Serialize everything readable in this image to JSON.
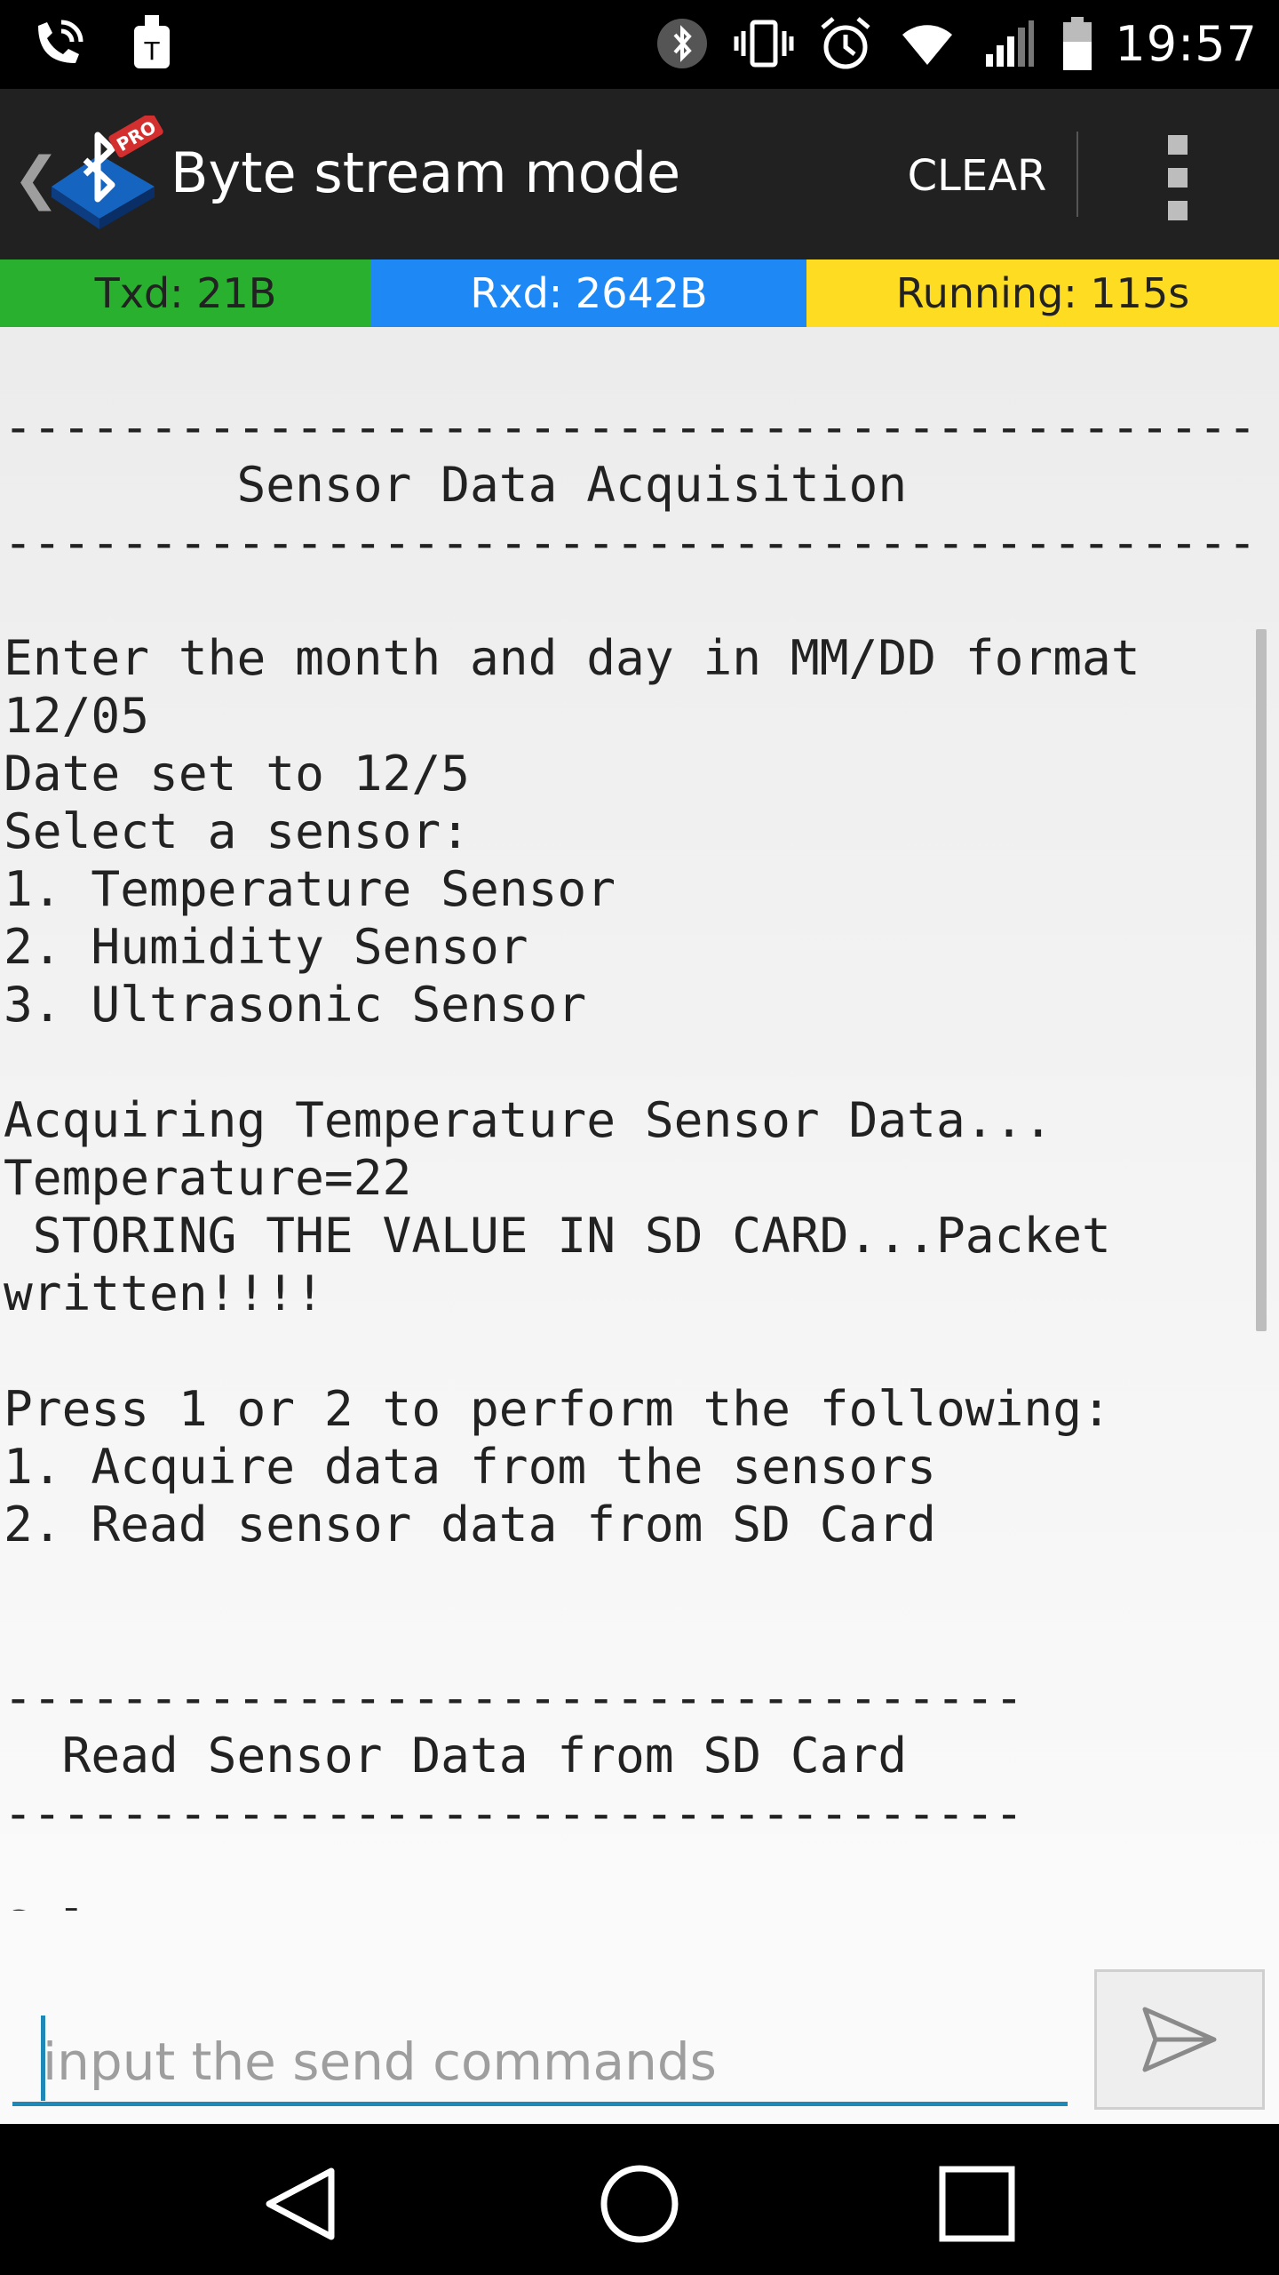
{
  "status_bar": {
    "left_icons": [
      "wifi-calling-icon",
      "notification-app-icon"
    ],
    "right_icons": [
      "bluetooth-icon",
      "vibrate-icon",
      "alarm-icon",
      "wifi-icon",
      "signal-icon",
      "battery-icon"
    ],
    "time": "19:57"
  },
  "action_bar": {
    "badge": "PRO",
    "title": "Byte stream mode",
    "clear_label": "CLEAR"
  },
  "stats": {
    "txd": "Txd: 21B",
    "rxd": "Rxd: 2642B",
    "running": "Running: 115s"
  },
  "terminal": {
    "lines": [
      "-------------------------------------------",
      "        Sensor Data Acquisition",
      "-------------------------------------------",
      "",
      "Enter the month and day in MM/DD format",
      "12/05",
      "Date set to 12/5",
      "Select a sensor:",
      "1. Temperature Sensor",
      "2. Humidity Sensor",
      "3. Ultrasonic Sensor",
      "",
      "Acquiring Temperature Sensor Data...",
      "Temperature=22",
      " STORING THE VALUE IN SD CARD...Packet",
      "written!!!!",
      "",
      "Press 1 or 2 to perform the following:",
      "1. Acquire data from the sensors",
      "2. Read sensor data from SD Card",
      "",
      "",
      "-----------------------------------",
      "  Read Sensor Data from SD Card",
      "-----------------------------------",
      "",
      "Select"
    ]
  },
  "input": {
    "placeholder": "input the send commands",
    "value": ""
  },
  "colors": {
    "tx": "#2ab02f",
    "rx": "#1e88f5",
    "running": "#fddc22",
    "accent": "#1e88b8"
  }
}
